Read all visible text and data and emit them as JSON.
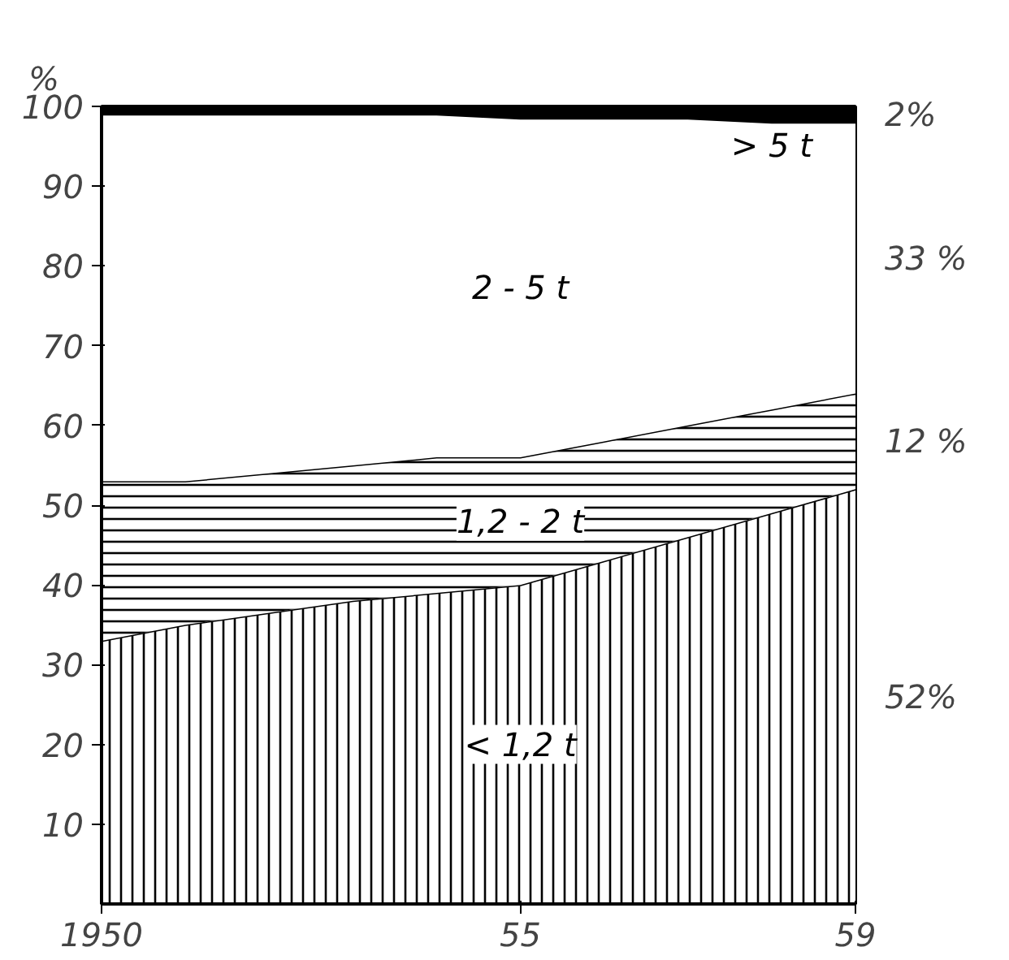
{
  "chart_data": {
    "type": "area",
    "stacked": true,
    "ylabel": "%",
    "x": [
      1950,
      1951,
      1952,
      1953,
      1954,
      1955,
      1956,
      1957,
      1958,
      1959
    ],
    "series": [
      {
        "name": "< 1,2 t",
        "color": "#000000",
        "values": [
          33,
          35,
          36.5,
          38,
          39,
          40,
          43,
          46,
          49,
          52
        ]
      },
      {
        "name": "1,2 - 2 t",
        "color": "#000000",
        "values": [
          20,
          18,
          17.5,
          17,
          17,
          16,
          15,
          14,
          13,
          12
        ]
      },
      {
        "name": "2 - 5 t",
        "color": "#ffffff",
        "values": [
          46,
          46,
          45,
          44,
          43,
          42.5,
          40.5,
          38.5,
          36,
          34
        ]
      },
      {
        "name": "> 5 t",
        "color": "#000000",
        "values": [
          1,
          1,
          1,
          1,
          1,
          1.5,
          1.5,
          1.5,
          2,
          2
        ]
      }
    ],
    "xlim": [
      1950,
      1959
    ],
    "ylim": [
      0,
      100
    ],
    "xticks": [
      {
        "value": 1950,
        "label": "1950"
      },
      {
        "value": 1955,
        "label": "55"
      },
      {
        "value": 1959,
        "label": "59"
      }
    ],
    "yticks": [
      10,
      20,
      30,
      40,
      50,
      60,
      70,
      80,
      90,
      100
    ],
    "annotations": [
      "52%",
      "12 %",
      "33 %",
      "2%"
    ],
    "marker": "none"
  }
}
